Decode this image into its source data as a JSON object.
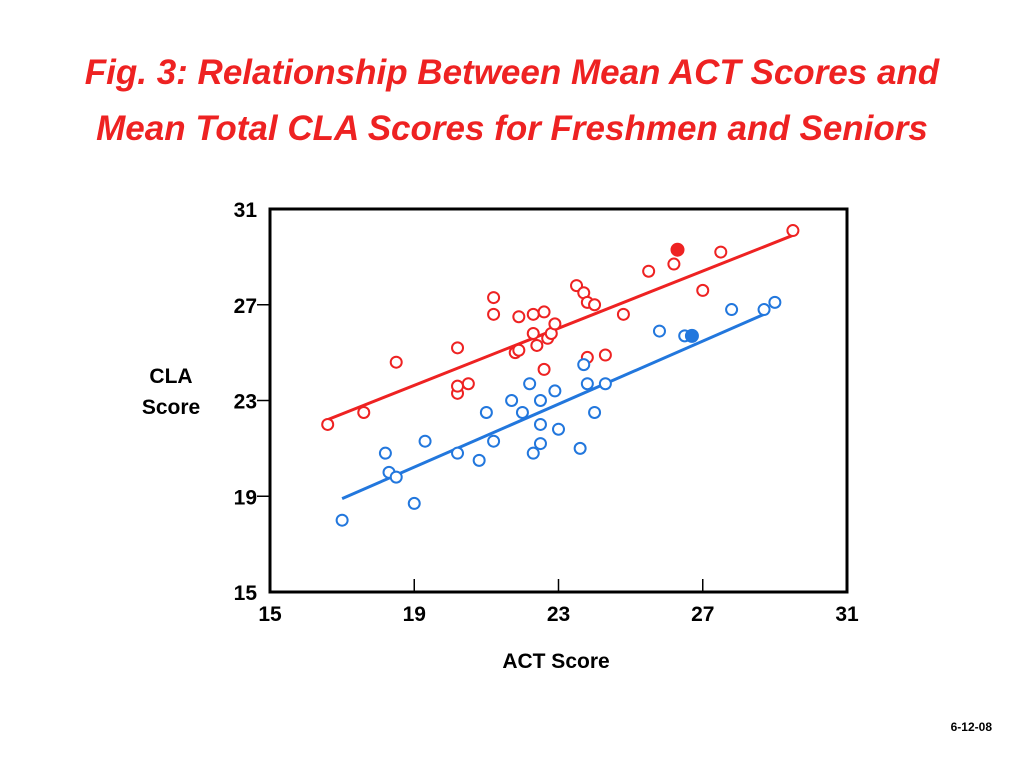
{
  "title_line1": "Fig. 3: Relationship Between Mean ACT Scores and",
  "title_line2": "Mean Total CLA Scores for Freshmen and Seniors",
  "footnote": "6-12-08",
  "colors": {
    "seniors": "#ee2222",
    "freshmen": "#2277dd",
    "title": "#ee2222"
  },
  "chart_data": {
    "type": "scatter",
    "title": "Fig. 3: Relationship Between Mean ACT Scores and Mean Total CLA Scores for Freshmen and Seniors",
    "xlabel": "ACT Score",
    "ylabel_lines": [
      "CLA",
      "Score"
    ],
    "xlim": [
      15,
      31
    ],
    "ylim": [
      15,
      31
    ],
    "xticks": [
      "15",
      "19",
      "23",
      "27",
      "31"
    ],
    "yticks": [
      "15",
      "19",
      "23",
      "27",
      "31"
    ],
    "grid": false,
    "legend": "none",
    "series": [
      {
        "color": "#ee2222",
        "points": [
          [
            16.6,
            22.0
          ],
          [
            17.6,
            22.5
          ],
          [
            18.5,
            24.6
          ],
          [
            20.2,
            25.2
          ],
          [
            20.2,
            23.3
          ],
          [
            20.2,
            23.6
          ],
          [
            20.5,
            23.7
          ],
          [
            21.2,
            27.3
          ],
          [
            21.2,
            26.6
          ],
          [
            21.8,
            25.0
          ],
          [
            21.9,
            25.1
          ],
          [
            21.9,
            26.5
          ],
          [
            22.3,
            26.6
          ],
          [
            22.3,
            25.8
          ],
          [
            22.4,
            25.3
          ],
          [
            22.6,
            24.3
          ],
          [
            22.6,
            26.7
          ],
          [
            22.7,
            25.6
          ],
          [
            22.8,
            25.8
          ],
          [
            22.9,
            26.2
          ],
          [
            23.5,
            27.8
          ],
          [
            23.7,
            27.5
          ],
          [
            23.8,
            27.1
          ],
          [
            23.8,
            24.8
          ],
          [
            24.0,
            27.0
          ],
          [
            24.3,
            24.9
          ],
          [
            24.8,
            26.6
          ],
          [
            25.5,
            28.4
          ],
          [
            26.2,
            28.7
          ],
          [
            27.0,
            27.6
          ],
          [
            27.5,
            29.2
          ],
          [
            29.5,
            30.1
          ]
        ],
        "highlight": [
          26.3,
          29.3
        ],
        "trend": [
          [
            16.6,
            22.2
          ],
          [
            29.5,
            29.9
          ]
        ]
      },
      {
        "color": "#2277dd",
        "points": [
          [
            17.0,
            18.0
          ],
          [
            18.2,
            20.8
          ],
          [
            18.3,
            20.0
          ],
          [
            18.5,
            19.8
          ],
          [
            19.0,
            18.7
          ],
          [
            19.3,
            21.3
          ],
          [
            20.2,
            20.8
          ],
          [
            20.8,
            20.5
          ],
          [
            21.0,
            22.5
          ],
          [
            21.2,
            21.3
          ],
          [
            21.7,
            23.0
          ],
          [
            22.0,
            22.5
          ],
          [
            22.2,
            23.7
          ],
          [
            22.3,
            20.8
          ],
          [
            22.5,
            21.2
          ],
          [
            22.5,
            22.0
          ],
          [
            22.5,
            23.0
          ],
          [
            22.9,
            23.4
          ],
          [
            23.0,
            21.8
          ],
          [
            23.6,
            21.0
          ],
          [
            23.7,
            24.5
          ],
          [
            23.8,
            23.7
          ],
          [
            24.0,
            22.5
          ],
          [
            24.3,
            23.7
          ],
          [
            25.8,
            25.9
          ],
          [
            26.5,
            25.7
          ],
          [
            27.8,
            26.8
          ],
          [
            28.7,
            26.8
          ],
          [
            29.0,
            27.1
          ]
        ],
        "highlight": [
          26.7,
          25.7
        ],
        "trend": [
          [
            17.0,
            18.9
          ],
          [
            28.7,
            26.6
          ]
        ]
      }
    ]
  }
}
